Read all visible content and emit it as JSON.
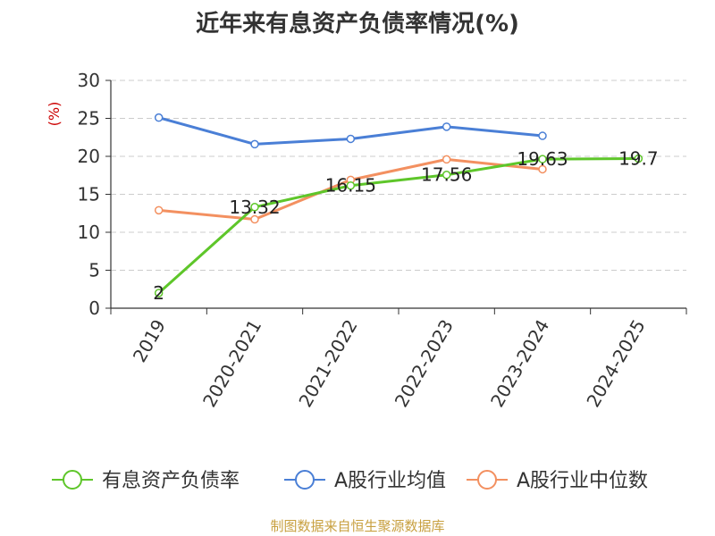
{
  "title": "近年来有息资产负债率情况(%)",
  "source_note": "制图数据来自恒生聚源数据库",
  "chart_data": {
    "type": "line",
    "title": "近年来有息资产负债率情况(%)",
    "ylabel": "(%)",
    "xlabel": "",
    "categories": [
      "2019",
      "2020-2021",
      "2021-2022",
      "2022-2023",
      "2023-2024",
      "2024-2025"
    ],
    "ylim": [
      0,
      30
    ],
    "yticks": [
      0,
      5,
      10,
      15,
      20,
      25,
      30
    ],
    "grid": "horizontal-dashed",
    "legend_position": "bottom",
    "series": [
      {
        "name": "有息资产负债率",
        "color": "#5ec62a",
        "values": [
          2,
          13.32,
          16.15,
          17.56,
          19.63,
          19.7
        ],
        "labels": [
          "2",
          "13.32",
          "16.15",
          "17.56",
          "19.63",
          "19.7"
        ]
      },
      {
        "name": "A股行业均值",
        "color": "#4a7fd6",
        "values": [
          25.1,
          21.6,
          22.3,
          23.9,
          22.7,
          null
        ]
      },
      {
        "name": "A股行业中位数",
        "color": "#f39060",
        "values": [
          12.9,
          11.7,
          16.9,
          19.6,
          18.3,
          null
        ]
      }
    ]
  }
}
